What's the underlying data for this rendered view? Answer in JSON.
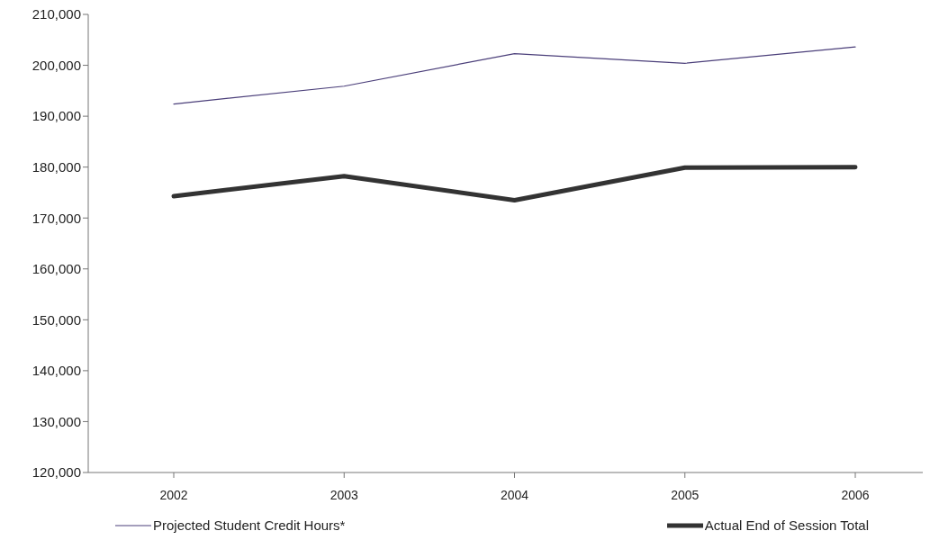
{
  "chart_data": {
    "type": "line",
    "categories": [
      "2002",
      "2003",
      "2004",
      "2005",
      "2006"
    ],
    "series": [
      {
        "name": "Projected Student Credit Hours*",
        "color": "#4b3f7a",
        "values": [
          192400,
          195900,
          202300,
          200400,
          203600
        ]
      },
      {
        "name": "Actual End of Session Total",
        "color": "#333333",
        "values": [
          174300,
          178200,
          173500,
          179900,
          180000
        ]
      }
    ],
    "ylim": [
      120000,
      210000
    ],
    "yticks": [
      {
        "value": 120000,
        "label": "120,000"
      },
      {
        "value": 130000,
        "label": "130,000"
      },
      {
        "value": 140000,
        "label": "140,000"
      },
      {
        "value": 150000,
        "label": "150,000"
      },
      {
        "value": 160000,
        "label": "160,000"
      },
      {
        "value": 170000,
        "label": "170,000"
      },
      {
        "value": 180000,
        "label": "180,000"
      },
      {
        "value": 190000,
        "label": "190,000"
      },
      {
        "value": 200000,
        "label": "200,000"
      },
      {
        "value": 210000,
        "label": "210,000"
      }
    ],
    "grid": false,
    "legend": "bottom",
    "marker": "none",
    "line_style": "solid"
  }
}
